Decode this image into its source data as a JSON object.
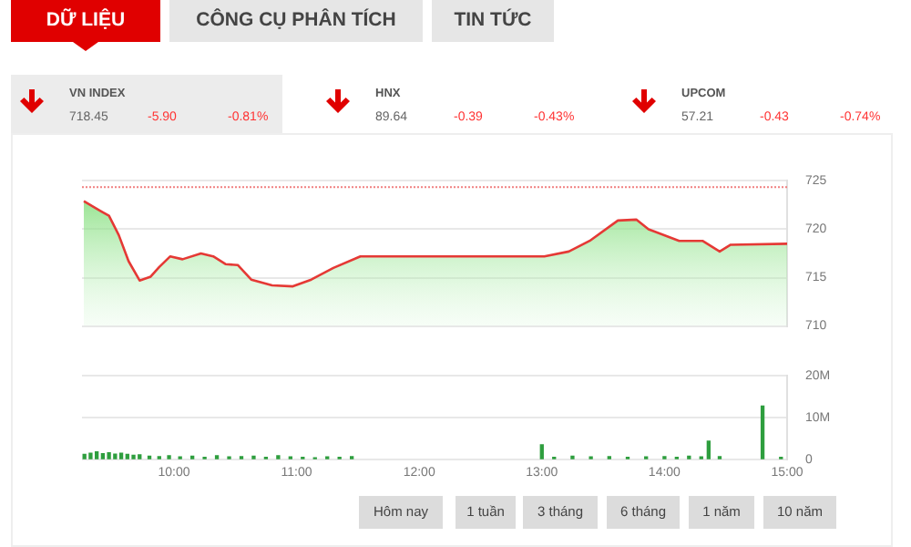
{
  "chart_data": [
    {
      "type": "other",
      "annotations": [
        "DỮ LIỆU",
        "CÔNG CỤ PHÂN TÍCH",
        "TIN TỨC",
        "VN INDEX",
        "718.45",
        "-5.90",
        "-0.81%",
        "HNX",
        "89.64",
        "-0.39",
        "-0.43%",
        "UPCOM",
        "57.21",
        "-0.43",
        "-0.74%",
        "Hôm nay",
        "1 tuần",
        "3 tháng",
        "6 tháng",
        "1 năm",
        "10 năm"
      ]
    },
    {
      "type": "area",
      "xlim": [
        9.25,
        15
      ],
      "ylim": [
        710,
        725
      ],
      "yticks": [
        710,
        715,
        720,
        725
      ],
      "grid": "y",
      "tick_labels": "y",
      "legend": false,
      "ref_lines": [
        {
          "axis": "y",
          "value": 724.35,
          "color": "#f08080",
          "line_style": "dotted"
        }
      ],
      "series": [
        {
          "color": "#e53935",
          "x": [
            9.265,
            9.4,
            9.47,
            9.55,
            9.63,
            9.72,
            9.81,
            9.88,
            9.97,
            10.07,
            10.22,
            10.32,
            10.42,
            10.52,
            10.63,
            10.8,
            10.97,
            11.12,
            11.3,
            11.52,
            13.02,
            13.22,
            13.39,
            13.62,
            13.77,
            13.87,
            14.12,
            14.31,
            14.45,
            14.54,
            15
          ],
          "values": [
            722.9,
            721.9,
            721.4,
            719.4,
            716.7,
            714.7,
            715.1,
            716.1,
            717.2,
            716.9,
            717.5,
            717.2,
            716.4,
            716.3,
            714.8,
            714.2,
            714.1,
            714.8,
            716,
            717.2,
            717.2,
            717.7,
            718.8,
            720.9,
            721,
            720,
            718.8,
            718.8,
            717.7,
            718.4,
            718.5
          ]
        }
      ]
    },
    {
      "type": "bar",
      "xlim": [
        9.25,
        15
      ],
      "xticks": [
        {
          "value": 10,
          "label": "10:00"
        },
        {
          "value": 11,
          "label": "11:00"
        },
        {
          "value": 12,
          "label": "12:00"
        },
        {
          "value": 13,
          "label": "13:00"
        },
        {
          "value": 14,
          "label": "14:00"
        },
        {
          "value": 15,
          "label": "15:00"
        }
      ],
      "ylim": [
        0,
        20
      ],
      "yticks": [
        {
          "value": 0,
          "label": "0"
        },
        {
          "value": 10,
          "label": "10M"
        },
        {
          "value": 20,
          "label": "20M"
        }
      ],
      "grid": "y",
      "legend": false,
      "series": [
        {
          "color": "#2e9e3e",
          "x": [
            9.27,
            9.32,
            9.37,
            9.42,
            9.47,
            9.52,
            9.57,
            9.62,
            9.67,
            9.72,
            9.8,
            9.88,
            9.96,
            10.05,
            10.15,
            10.25,
            10.35,
            10.45,
            10.55,
            10.65,
            10.75,
            10.85,
            10.95,
            11.05,
            11.15,
            11.25,
            11.35,
            11.45,
            13.0,
            13.1,
            13.25,
            13.4,
            13.55,
            13.7,
            13.85,
            14.0,
            14.1,
            14.2,
            14.3,
            14.36,
            14.45,
            14.8,
            14.95
          ],
          "values": [
            1.2,
            1.5,
            1.8,
            1.4,
            1.6,
            1.3,
            1.5,
            1.2,
            1,
            1.1,
            0.8,
            0.7,
            0.9,
            0.6,
            0.8,
            0.5,
            0.9,
            0.6,
            0.7,
            0.8,
            0.5,
            0.9,
            0.6,
            0.5,
            0.4,
            0.6,
            0.5,
            0.7,
            3.5,
            0.5,
            0.8,
            0.6,
            0.7,
            0.5,
            0.6,
            0.7,
            0.5,
            0.8,
            0.6,
            4.4,
            0.7,
            12.8,
            0.5
          ]
        }
      ]
    }
  ]
}
